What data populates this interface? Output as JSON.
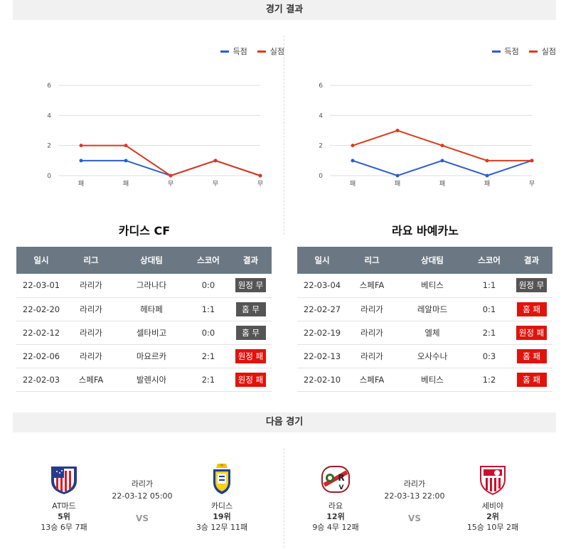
{
  "sections": {
    "results_title": "경기 결과",
    "next_title": "다음 경기"
  },
  "legend": {
    "scored": "득점",
    "conceded": "실점",
    "scored_color": "#2e5ec7",
    "conceded_color": "#d63c1e"
  },
  "chart_data": [
    {
      "type": "line",
      "categories": [
        "패",
        "패",
        "무",
        "무",
        "무"
      ],
      "yticks": [
        0,
        2,
        4,
        6
      ],
      "ylim": [
        0,
        6
      ],
      "series": [
        {
          "name": "득점",
          "color": "#2e5ec7",
          "values": [
            1,
            1,
            0,
            1,
            0
          ]
        },
        {
          "name": "실점",
          "color": "#d63c1e",
          "values": [
            2,
            2,
            0,
            1,
            0
          ]
        }
      ]
    },
    {
      "type": "line",
      "categories": [
        "패",
        "패",
        "패",
        "패",
        "무"
      ],
      "yticks": [
        0,
        2,
        4,
        6
      ],
      "ylim": [
        0,
        6
      ],
      "series": [
        {
          "name": "득점",
          "color": "#2e5ec7",
          "values": [
            1,
            0,
            1,
            0,
            1
          ]
        },
        {
          "name": "실점",
          "color": "#d63c1e",
          "values": [
            2,
            3,
            2,
            1,
            1
          ]
        }
      ]
    }
  ],
  "tables": [
    {
      "team": "카디스 CF",
      "headers": [
        "일시",
        "리그",
        "상대팀",
        "스코어",
        "결과"
      ],
      "rows": [
        {
          "date": "22-03-01",
          "league": "라리가",
          "opponent": "그라나다",
          "score": "0:0",
          "result": "원정 무",
          "kind": "draw"
        },
        {
          "date": "22-02-20",
          "league": "라리가",
          "opponent": "헤타페",
          "score": "1:1",
          "result": "홈 무",
          "kind": "draw"
        },
        {
          "date": "22-02-12",
          "league": "라리가",
          "opponent": "셀타비고",
          "score": "0:0",
          "result": "홈 무",
          "kind": "draw"
        },
        {
          "date": "22-02-06",
          "league": "라리가",
          "opponent": "마요르카",
          "score": "2:1",
          "result": "원정 패",
          "kind": "loss"
        },
        {
          "date": "22-02-03",
          "league": "스페FA",
          "opponent": "발렌시아",
          "score": "2:1",
          "result": "원정 패",
          "kind": "loss"
        }
      ]
    },
    {
      "team": "라요 바예카노",
      "headers": [
        "일시",
        "리그",
        "상대팀",
        "스코어",
        "결과"
      ],
      "rows": [
        {
          "date": "22-03-04",
          "league": "스페FA",
          "opponent": "베티스",
          "score": "1:1",
          "result": "원정 무",
          "kind": "draw"
        },
        {
          "date": "22-02-27",
          "league": "라리가",
          "opponent": "레알마드",
          "score": "0:1",
          "result": "홈 패",
          "kind": "loss"
        },
        {
          "date": "22-02-19",
          "league": "라리가",
          "opponent": "엘체",
          "score": "2:1",
          "result": "원정 패",
          "kind": "loss"
        },
        {
          "date": "22-02-13",
          "league": "라리가",
          "opponent": "오사수나",
          "score": "0:3",
          "result": "홈 패",
          "kind": "loss"
        },
        {
          "date": "22-02-10",
          "league": "스페FA",
          "opponent": "베티스",
          "score": "1:2",
          "result": "홈 패",
          "kind": "loss"
        }
      ]
    }
  ],
  "next_matches": [
    {
      "league": "라리가",
      "datetime": "22-03-12 05:00",
      "vs": "VS",
      "home": {
        "name": "AT마드",
        "rank": "5위",
        "record": "13승 6무 7패",
        "logo": "atletico-madrid-crest"
      },
      "away": {
        "name": "카디스",
        "rank": "19위",
        "record": "3승 12무 11패",
        "logo": "cadiz-crest"
      }
    },
    {
      "league": "라리가",
      "datetime": "22-03-13 22:00",
      "vs": "VS",
      "home": {
        "name": "라요",
        "rank": "12위",
        "record": "9승 4무 12패",
        "logo": "rayo-vallecano-crest"
      },
      "away": {
        "name": "세비야",
        "rank": "2위",
        "record": "15승 10무 2패",
        "logo": "sevilla-crest"
      }
    }
  ]
}
